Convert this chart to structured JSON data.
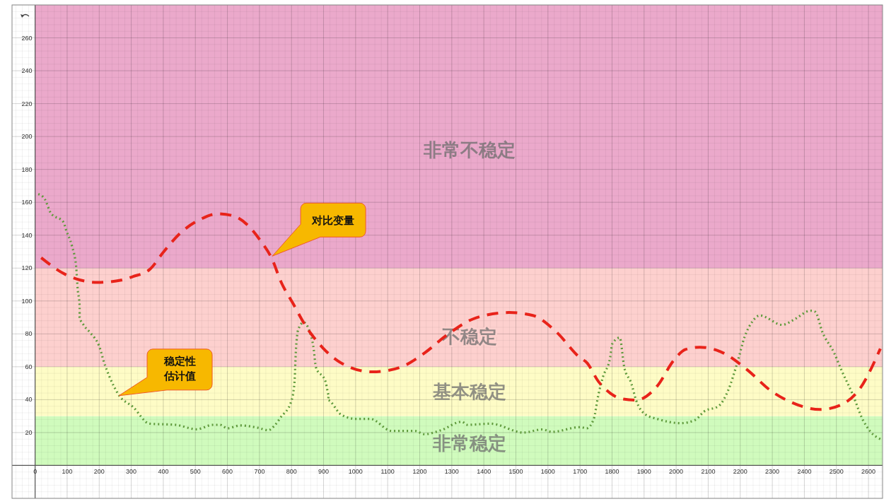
{
  "chart_data": {
    "type": "line",
    "xlim": [
      -72,
      2644
    ],
    "ylim": [
      -20,
      280
    ],
    "xticks": [
      0,
      100,
      200,
      300,
      400,
      500,
      600,
      700,
      800,
      900,
      1000,
      1100,
      1200,
      1300,
      1400,
      1500,
      1600,
      1700,
      1800,
      1900,
      2000,
      2100,
      2200,
      2300,
      2400,
      2500,
      2600
    ],
    "yticks": [
      20,
      40,
      60,
      80,
      100,
      120,
      140,
      160,
      180,
      200,
      220,
      240,
      260
    ],
    "grid": true,
    "annotations": [
      "稳定性估计值",
      "对比变量"
    ],
    "bands": [
      {
        "axis": "y",
        "from": 0,
        "to": 30,
        "label": "非常稳定",
        "color": "#d0fbbd"
      },
      {
        "axis": "y",
        "from": 30,
        "to": 60,
        "label": "基本稳定",
        "color": "#fefcc6"
      },
      {
        "axis": "y",
        "from": 60,
        "to": 120,
        "label": "不稳定",
        "color": "#fdd0ce"
      },
      {
        "axis": "y",
        "from": 120,
        "to": 280,
        "label": "非常不稳定",
        "color": "#eba9cb"
      }
    ],
    "series": [
      {
        "color": "#5f9a3c",
        "line_style": "dotted",
        "x": [
          10,
          30,
          49,
          89,
          96,
          115,
          128,
          133,
          139,
          139,
          151,
          173,
          199,
          218,
          232,
          262,
          306,
          357,
          438,
          504,
          555,
          577,
          600,
          640,
          695,
          728,
          746,
          768,
          798,
          809,
          814,
          821,
          838,
          854,
          869,
          876,
          906,
          917,
          913,
          954,
          1001,
          1046,
          1112,
          1185,
          1215,
          1266,
          1332,
          1347,
          1421,
          1524,
          1582,
          1612,
          1700,
          1721,
          1743,
          1757,
          1772,
          1794,
          1801,
          1824,
          1838,
          1860,
          1875,
          1904,
          1941,
          2015,
          2059,
          2088,
          2133,
          2162,
          2191,
          2214,
          2236,
          2261,
          2331,
          2368,
          2420,
          2434,
          2456,
          2493,
          2515,
          2552,
          2581,
          2604,
          2644
        ],
        "values": [
          165,
          162,
          153.5,
          147.8,
          143.5,
          133.4,
          121,
          107,
          97,
          90,
          85.5,
          80.5,
          73,
          61,
          54,
          42.6,
          35.5,
          25.4,
          24.7,
          22,
          24.7,
          24.7,
          22.6,
          24.3,
          22.9,
          21.4,
          24,
          29.7,
          38.3,
          50,
          71,
          82.7,
          87,
          82.7,
          71,
          59.8,
          51,
          42.6,
          39.7,
          31,
          28.3,
          28.3,
          21,
          21,
          19,
          21.4,
          26.6,
          24.7,
          25.4,
          20,
          21.9,
          20.4,
          23.3,
          22.6,
          28.3,
          42.6,
          54,
          65.5,
          74,
          77.7,
          59.8,
          50,
          39.7,
          31,
          28.3,
          25.7,
          27.6,
          32.9,
          36.2,
          45.5,
          62.6,
          78.4,
          87,
          91.2,
          85.5,
          88.7,
          94.1,
          93.4,
          81.2,
          68.4,
          58.3,
          42.6,
          28.3,
          21.1,
          15.4
        ]
      },
      {
        "color": "#e8231a",
        "line_style": "dashed",
        "x": [
          19,
          93,
          129,
          195,
          269,
          306,
          357,
          401,
          453,
          511,
          570,
          614,
          666,
          702,
          739,
          768,
          805,
          842,
          862,
          899,
          965,
          1053,
          1141,
          1215,
          1288,
          1376,
          1479,
          1553,
          1626,
          1700,
          1721,
          1757,
          1794,
          1831,
          1875,
          1941,
          1993,
          2029,
          2074,
          2147,
          2221,
          2295,
          2361,
          2449,
          2515,
          2574,
          2637
        ],
        "values": [
          126.3,
          116.3,
          113.4,
          111.3,
          112.7,
          114.9,
          119.1,
          129.9,
          141.3,
          149.2,
          153,
          152,
          145.6,
          137,
          125.6,
          111.3,
          98.4,
          85.5,
          79.8,
          71.2,
          61.2,
          56.9,
          59.8,
          68.4,
          79.8,
          89.8,
          93,
          91.2,
          81.2,
          65.5,
          62.6,
          51.2,
          44,
          40.5,
          39.7,
          48.3,
          64,
          70.5,
          71.9,
          68.4,
          58.3,
          45.5,
          38.3,
          34,
          36.9,
          46.9,
          71
        ]
      }
    ]
  }
}
